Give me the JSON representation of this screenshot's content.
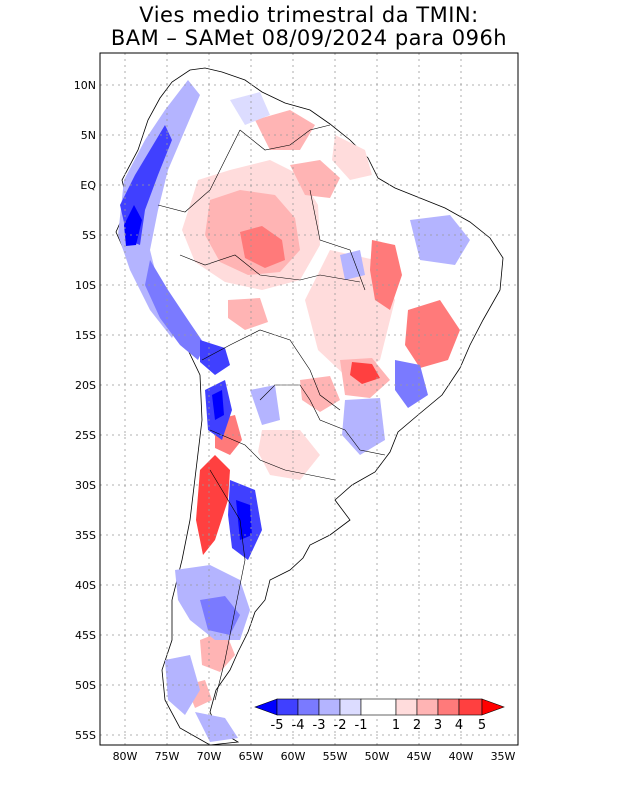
{
  "title": {
    "line1": "Vies medio trimestral da TMIN:",
    "line2": "BAM – SAMet 08/09/2024  para 096h"
  },
  "map": {
    "lon_range": [
      -83,
      -34
    ],
    "lat_range": [
      -56,
      13
    ],
    "lat_labels": [
      "10N",
      "5N",
      "EQ",
      "5S",
      "10S",
      "15S",
      "20S",
      "25S",
      "30S",
      "35S",
      "40S",
      "45S",
      "50S",
      "55S"
    ],
    "lat_values": [
      10,
      5,
      0,
      -5,
      -10,
      -15,
      -20,
      -25,
      -30,
      -35,
      -40,
      -45,
      -50,
      -55
    ],
    "lon_labels": [
      "80W",
      "75W",
      "70W",
      "65W",
      "60W",
      "55W",
      "50W",
      "45W",
      "40W",
      "35W"
    ],
    "lon_values": [
      -80,
      -75,
      -70,
      -65,
      -60,
      -55,
      -50,
      -45,
      -40,
      -35
    ]
  },
  "colorbar": {
    "labels": [
      "-5",
      "-4",
      "-3",
      "-2",
      "-1",
      "1",
      "2",
      "3",
      "4",
      "5"
    ],
    "colors": [
      "#0000ff",
      "#4040ff",
      "#7a7aff",
      "#b4b4ff",
      "#dcdcff",
      "#ffffff",
      "#ffdcdc",
      "#ffb4b4",
      "#ff7a7a",
      "#ff4040",
      "#ff0000"
    ]
  }
}
